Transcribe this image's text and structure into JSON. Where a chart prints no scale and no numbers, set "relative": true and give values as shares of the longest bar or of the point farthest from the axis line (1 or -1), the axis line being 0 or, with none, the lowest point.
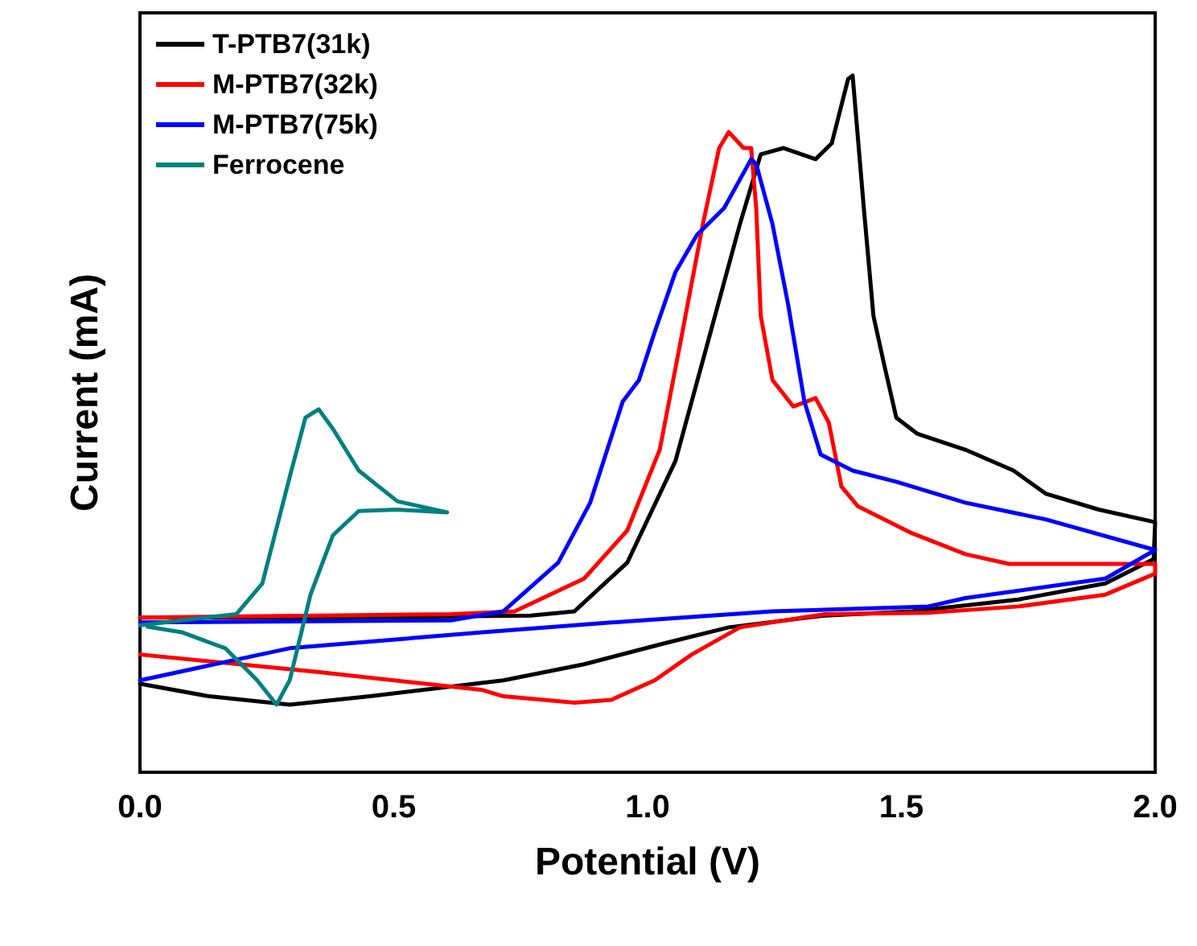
{
  "chart_data": {
    "type": "line",
    "relative": true,
    "xlabel": "Potential (V)",
    "ylabel": "Current (mA)",
    "xlim": [
      0,
      2
    ],
    "xticks": [
      {
        "value": 0,
        "label": "0.0"
      },
      {
        "value": 0.5,
        "label": "0.5"
      },
      {
        "value": 1,
        "label": "1.0"
      },
      {
        "value": 1.5,
        "label": "1.5"
      },
      {
        "value": 2,
        "label": "2.0"
      }
    ],
    "legend": "top left",
    "marker": "none",
    "line_style": "solid",
    "grid": false,
    "series": [
      {
        "name": "T-PTB7(31k)",
        "color": "#000000",
        "x": [
          0,
          0.358,
          0.77,
          0.856,
          0.96,
          1.055,
          1.119,
          1.182,
          1.223,
          1.268,
          1.331,
          1.363,
          1.395,
          1.404,
          1.426,
          1.445,
          1.468,
          1.49,
          1.531,
          1.626,
          1.721,
          1.784,
          1.889,
          2.0,
          1.997,
          1.902,
          1.731,
          1.521,
          1.35,
          1.16,
          1.033,
          0.875,
          0.716,
          0.453,
          0.295,
          0.136,
          0
        ],
        "values": [
          0.222,
          0.222,
          0.225,
          0.231,
          0.301,
          0.447,
          0.618,
          0.787,
          0.887,
          0.896,
          0.88,
          0.903,
          0.995,
          1.0,
          0.81,
          0.655,
          0.579,
          0.509,
          0.486,
          0.463,
          0.433,
          0.4,
          0.377,
          0.359,
          0.306,
          0.271,
          0.248,
          0.231,
          0.225,
          0.208,
          0.185,
          0.155,
          0.132,
          0.109,
          0.097,
          0.109,
          0.127
        ]
      },
      {
        "name": "M-PTB7(32k)",
        "color": "#ff0000",
        "x": [
          0,
          0.612,
          0.738,
          0.875,
          0.96,
          1.024,
          1.065,
          1.109,
          1.141,
          1.16,
          1.189,
          1.204,
          1.214,
          1.223,
          1.246,
          1.287,
          1.331,
          1.357,
          1.382,
          1.414,
          1.521,
          1.626,
          1.712,
          2.0,
          2.0,
          1.902,
          1.731,
          1.553,
          1.35,
          1.182,
          1.087,
          1.014,
          0.929,
          0.856,
          0.716,
          0.675,
          0.349,
          0
        ],
        "values": [
          0.222,
          0.227,
          0.231,
          0.278,
          0.347,
          0.463,
          0.618,
          0.787,
          0.896,
          0.919,
          0.896,
          0.896,
          0.81,
          0.655,
          0.563,
          0.525,
          0.537,
          0.502,
          0.41,
          0.382,
          0.343,
          0.313,
          0.299,
          0.299,
          0.285,
          0.255,
          0.238,
          0.229,
          0.227,
          0.208,
          0.169,
          0.132,
          0.104,
          0.1,
          0.109,
          0.118,
          0.144,
          0.169
        ]
      },
      {
        "name": "M-PTB7(75k)",
        "color": "#0000ff",
        "x": [
          0,
          0.612,
          0.716,
          0.824,
          0.887,
          0.951,
          0.983,
          1.014,
          1.055,
          1.097,
          1.151,
          1.204,
          1.214,
          1.246,
          1.277,
          1.309,
          1.341,
          1.404,
          1.49,
          1.626,
          1.784,
          2.0,
          1.902,
          1.626,
          1.553,
          1.246,
          0.929,
          0.675,
          0.295,
          0
        ],
        "values": [
          0.215,
          0.218,
          0.231,
          0.301,
          0.387,
          0.532,
          0.563,
          0.632,
          0.718,
          0.771,
          0.81,
          0.88,
          0.873,
          0.787,
          0.671,
          0.532,
          0.456,
          0.433,
          0.417,
          0.387,
          0.363,
          0.319,
          0.278,
          0.25,
          0.238,
          0.231,
          0.215,
          0.201,
          0.178,
          0.132
        ]
      },
      {
        "name": "Ferrocene",
        "color": "#008080",
        "x": [
          0,
          0.19,
          0.241,
          0.295,
          0.326,
          0.352,
          0.38,
          0.431,
          0.507,
          0.605,
          0.507,
          0.431,
          0.38,
          0.336,
          0.295,
          0.269,
          0.231,
          0.168,
          0.082,
          0.015
        ],
        "values": [
          0.211,
          0.227,
          0.271,
          0.424,
          0.509,
          0.521,
          0.493,
          0.433,
          0.389,
          0.373,
          0.377,
          0.375,
          0.34,
          0.255,
          0.132,
          0.097,
          0.132,
          0.178,
          0.201,
          0.209
        ]
      }
    ]
  }
}
